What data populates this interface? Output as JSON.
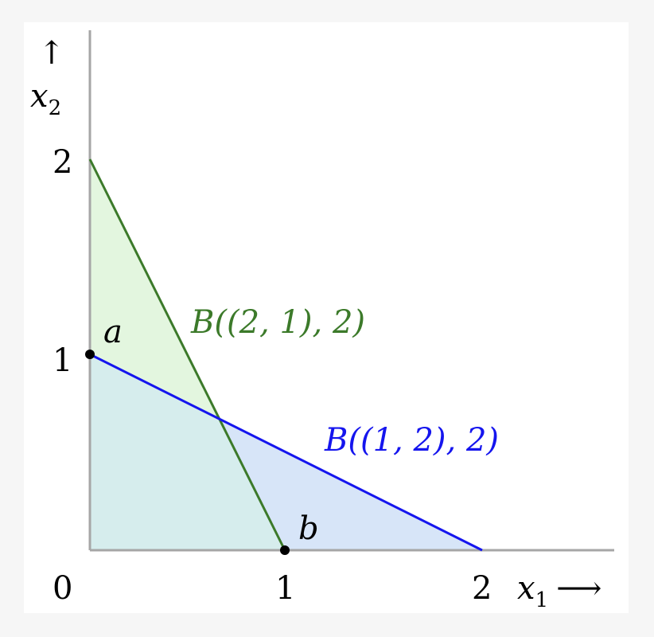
{
  "figure": {
    "ticks_x": [
      "0",
      "1",
      "2"
    ],
    "ticks_y": [
      "1",
      "2"
    ],
    "x_axis_label": {
      "var": "x",
      "sub": "1",
      "arrow": "⟶"
    },
    "y_axis_label": {
      "var": "x",
      "sub": "2",
      "arrow": "↑"
    },
    "budget_sets": [
      {
        "text": "B((2, 1), 2)",
        "prices": [
          2,
          1
        ],
        "wealth": 2,
        "color": "#3c7a2a",
        "fill": "#e3f6df"
      },
      {
        "text": "B((1, 2), 2)",
        "prices": [
          1,
          2
        ],
        "wealth": 2,
        "color": "#1515ee",
        "fill": "#d7e5f8"
      }
    ],
    "overlap_fill": "#d6eded",
    "points": [
      {
        "name": "a",
        "x": 0,
        "y": 1
      },
      {
        "name": "b",
        "x": 1,
        "y": 0
      }
    ],
    "axis_color": "#a6a6a6"
  }
}
